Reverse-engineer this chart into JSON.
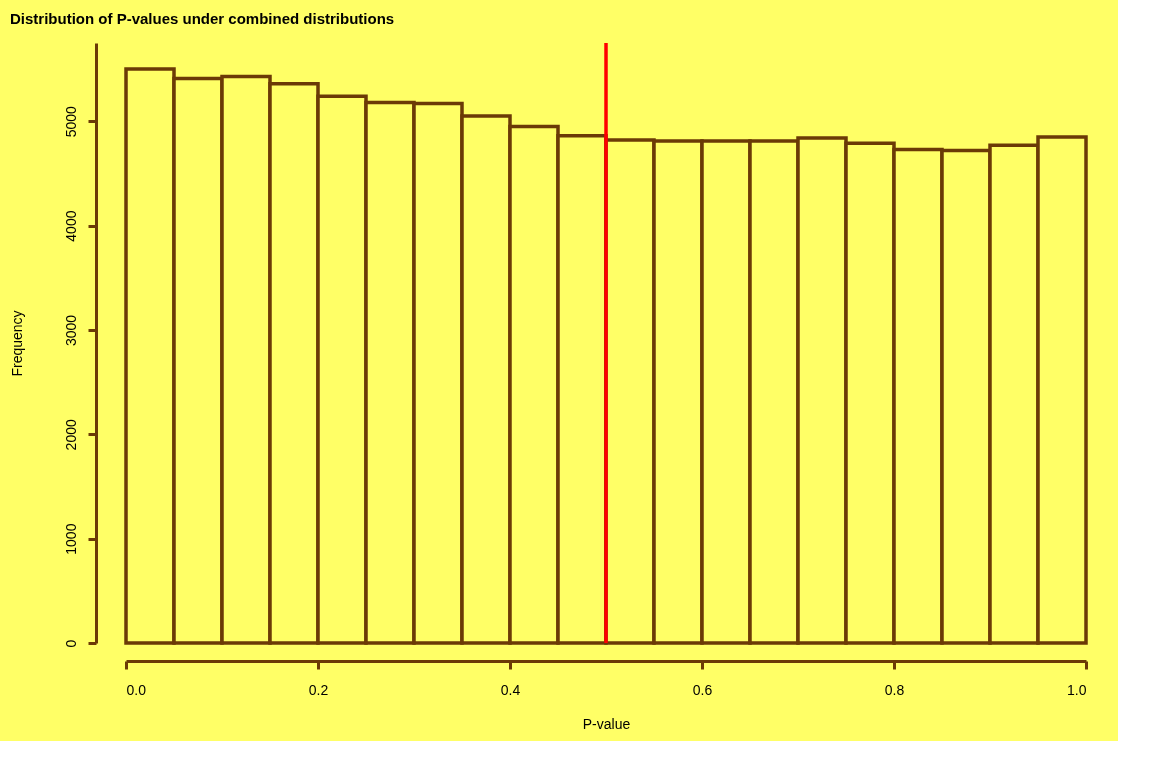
{
  "chart_data": {
    "type": "histogram",
    "title": "Distribution of P-values under combined distributions",
    "xlabel": "P-value",
    "ylabel": "Frequency",
    "bins": [
      0,
      0.05,
      0.1,
      0.15,
      0.2,
      0.25,
      0.3,
      0.35,
      0.4,
      0.45,
      0.5,
      0.55,
      0.6,
      0.65,
      0.7,
      0.75,
      0.8,
      0.85,
      0.9,
      0.95,
      1.0
    ],
    "values": [
      5500,
      5410,
      5430,
      5360,
      5240,
      5180,
      5170,
      5050,
      4950,
      4860,
      4820,
      4810,
      4810,
      4810,
      4840,
      4790,
      4730,
      4720,
      4770,
      4850
    ],
    "color": "#6b3a06",
    "xlim": [
      0,
      1
    ],
    "xticks": [
      {
        "value": 0,
        "label": "0.0"
      },
      0.2,
      0.4,
      0.6,
      0.8,
      {
        "value": 1,
        "label": "1.0"
      }
    ],
    "ylim": [
      0,
      5750
    ],
    "yticks": [
      0,
      1000,
      2000,
      3000,
      4000,
      5000
    ],
    "grid": false,
    "ref_lines": [
      {
        "axis": "x",
        "value": 0.5,
        "color": "#ff0000"
      }
    ]
  }
}
